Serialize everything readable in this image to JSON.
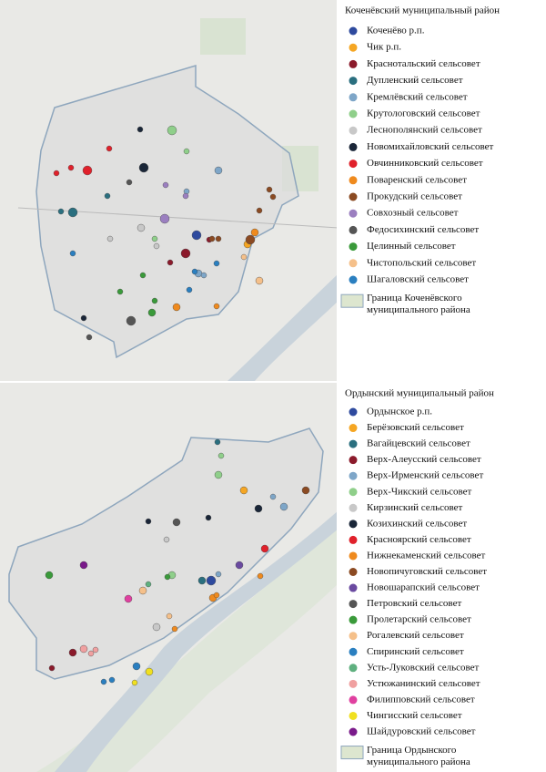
{
  "maps": [
    {
      "title": "Коченёвский муниципальный район",
      "legend": [
        {
          "label": "Коченёво р.п.",
          "color": "#2e4a9e"
        },
        {
          "label": "Чик р.п.",
          "color": "#f5a623"
        },
        {
          "label": "Краснотальский сельсовет",
          "color": "#8b1a2b"
        },
        {
          "label": "Дупленский сельсовет",
          "color": "#2a6f7f"
        },
        {
          "label": "Кремлёвский сельсовет",
          "color": "#7ea6c8"
        },
        {
          "label": "Крутологовский сельсовет",
          "color": "#8fcf8a"
        },
        {
          "label": "Леснополянский сельсовет",
          "color": "#c8c8c8"
        },
        {
          "label": "Новомихайловский сельсовет",
          "color": "#1a2638"
        },
        {
          "label": "Овчинниковский сельсовет",
          "color": "#e0212b"
        },
        {
          "label": "Поваренский сельсовет",
          "color": "#ef8a1e"
        },
        {
          "label": "Прокудский сельсовет",
          "color": "#8b4a22"
        },
        {
          "label": "Совхозный сельсовет",
          "color": "#9b7fc0"
        },
        {
          "label": "Федосихинский сельсовет",
          "color": "#555555"
        },
        {
          "label": "Целинный сельсовет",
          "color": "#3a9a3a"
        },
        {
          "label": "Чистопольский сельсовет",
          "color": "#f5c08a"
        },
        {
          "label": "Шагаловский сельсовет",
          "color": "#2a7fc0"
        }
      ],
      "boundary_label": "Граница Коченёвского муниципального района"
    },
    {
      "title": "Ордынский муниципальный район",
      "legend": [
        {
          "label": "Ордынское р.п.",
          "color": "#2e4a9e"
        },
        {
          "label": "Берёзовский сельсовет",
          "color": "#f5a623"
        },
        {
          "label": "Вагайцевский сельсовет",
          "color": "#2a6f7f"
        },
        {
          "label": "Верх-Алеусский сельсовет",
          "color": "#8b1a2b"
        },
        {
          "label": "Верх-Ирменский сельсовет",
          "color": "#7ea6c8"
        },
        {
          "label": "Верх-Чикский сельсовет",
          "color": "#8fcf8a"
        },
        {
          "label": "Кирзинский сельсовет",
          "color": "#c8c8c8"
        },
        {
          "label": "Козихинский сельсовет",
          "color": "#1a2638"
        },
        {
          "label": "Красноярский сельсовет",
          "color": "#e0212b"
        },
        {
          "label": "Нижнекаменский сельсовет",
          "color": "#ef8a1e"
        },
        {
          "label": "Новопичуговский сельсовет",
          "color": "#8b4a22"
        },
        {
          "label": "Новошарапский сельсовет",
          "color": "#6a4aa0"
        },
        {
          "label": "Петровский сельсовет",
          "color": "#555555"
        },
        {
          "label": "Пролетарский сельсовет",
          "color": "#3a9a3a"
        },
        {
          "label": "Рогалевский сельсовет",
          "color": "#f5c08a"
        },
        {
          "label": "Спиринский сельсовет",
          "color": "#2a7fc0"
        },
        {
          "label": "Усть-Луковский сельсовет",
          "color": "#5fb07f"
        },
        {
          "label": "Устюжанинский сельсовет",
          "color": "#f0a0a0"
        },
        {
          "label": "Филипповский сельсовет",
          "color": "#e040a0"
        },
        {
          "label": "Чингисский сельсовет",
          "color": "#f0e020"
        },
        {
          "label": "Шайдуровский сельсовет",
          "color": "#7a1a8a"
        }
      ],
      "boundary_label": "Граница Ордынского муниципального района"
    }
  ]
}
